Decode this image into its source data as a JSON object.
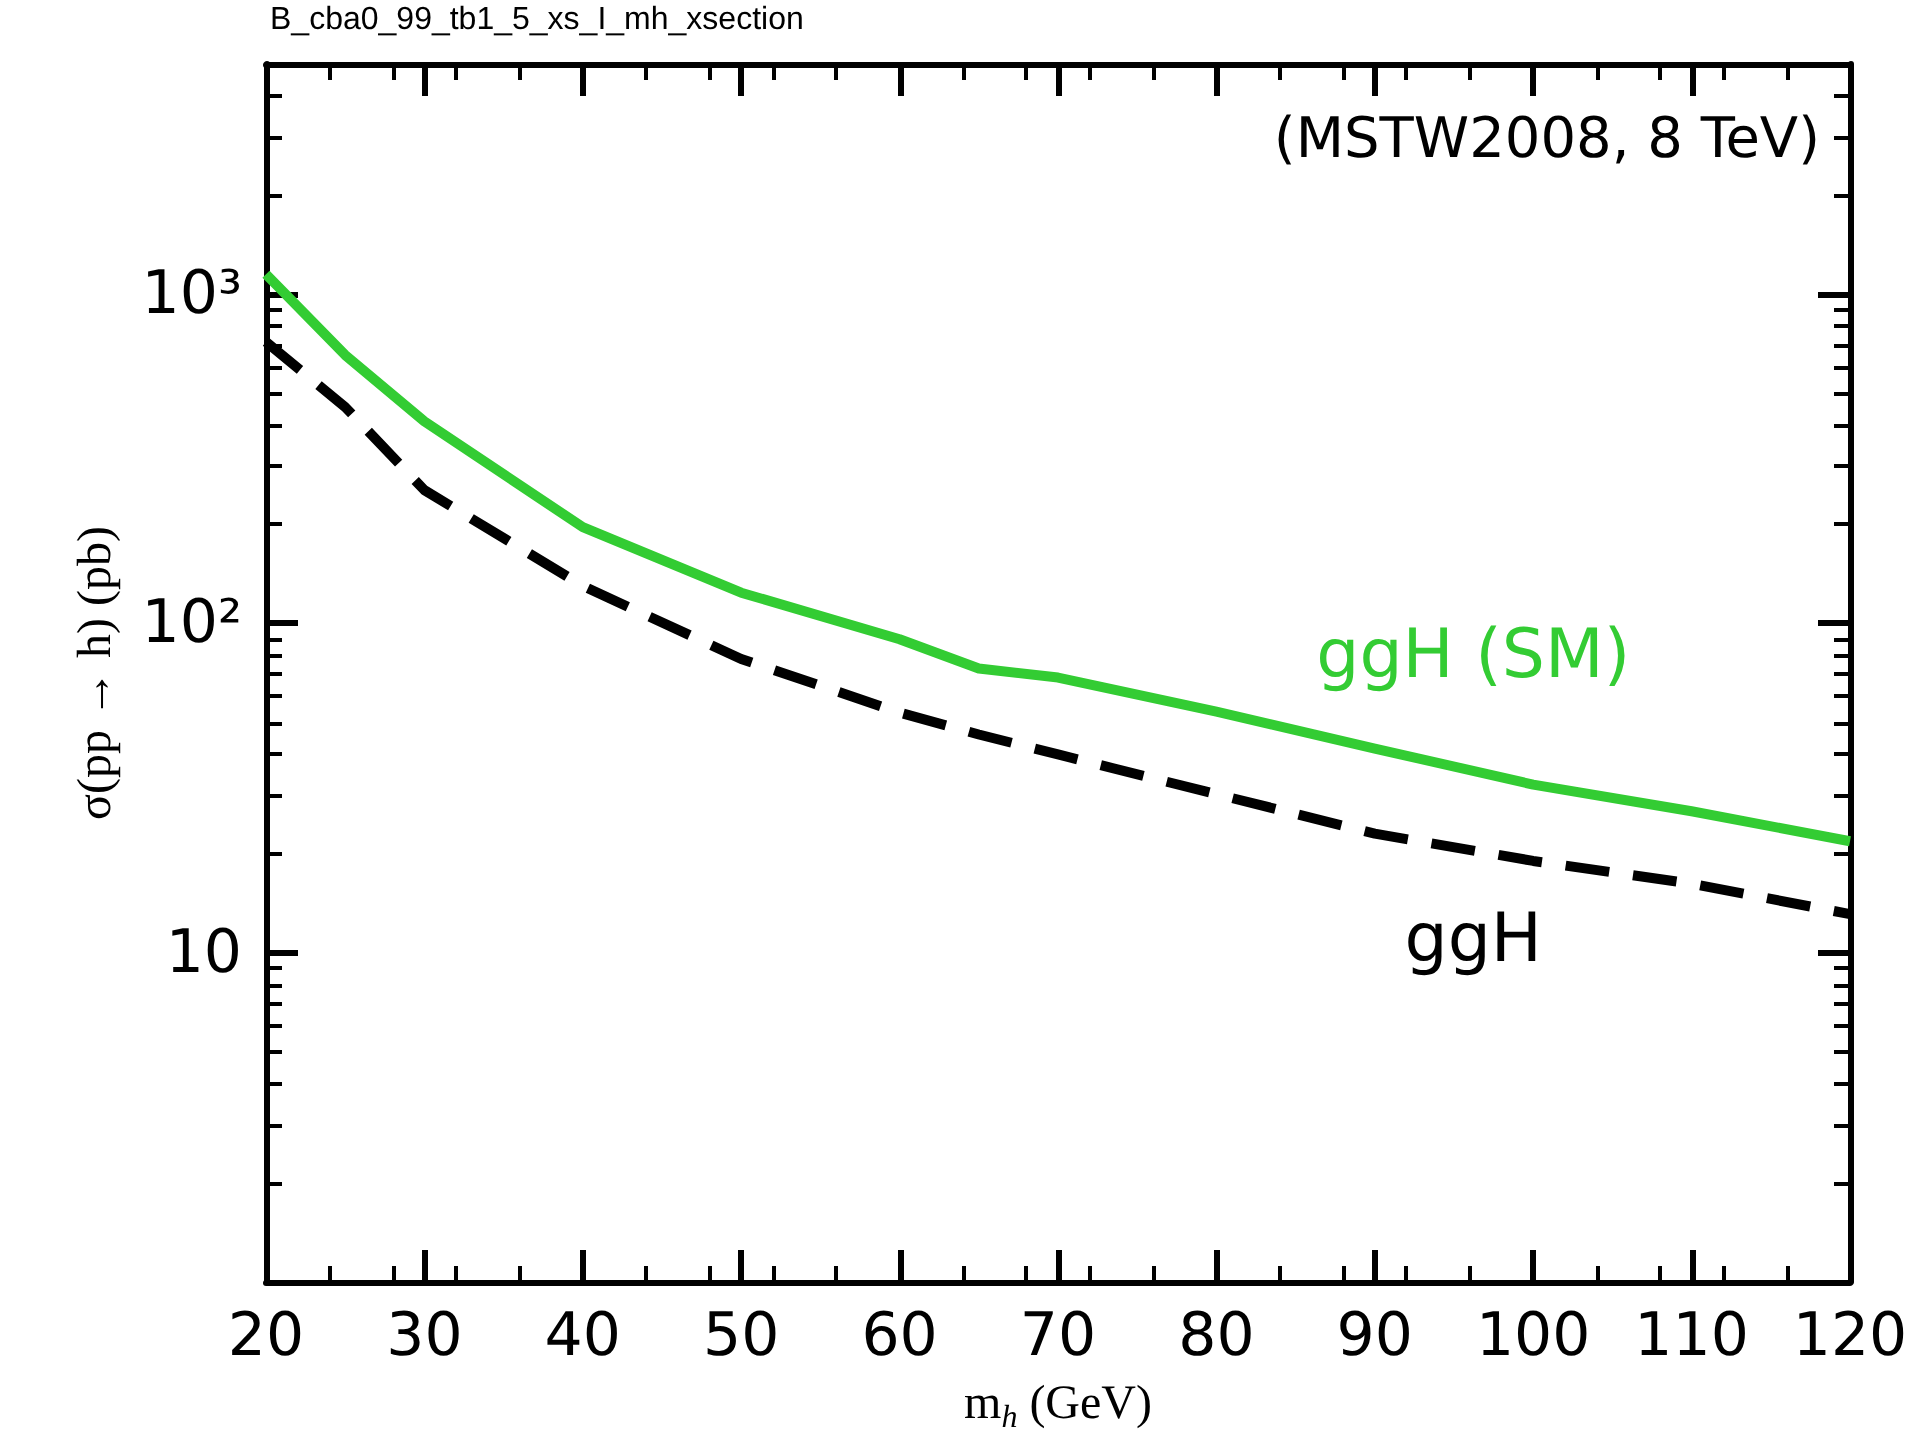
{
  "chart_data": {
    "type": "line",
    "title": "B_cba0_99_tb1_5_xs_I_mh_xsection",
    "xlabel": "m$_{h}$ (GeV)",
    "ylabel": "σ(pp → h) (pb)",
    "annotations": [
      "(MSTW2008, 8 TeV)"
    ],
    "x": [
      20,
      25,
      30,
      40,
      50,
      60,
      65,
      70,
      80,
      90,
      100,
      110,
      120
    ],
    "series": [
      {
        "name": "ggH (SM)",
        "color": "#33cc33",
        "line_style": "solid",
        "values": [
          1150,
          653,
          411,
          196,
          124,
          89.5,
          73,
          68.5,
          54,
          41.7,
          32.4,
          26.9,
          21.8
        ]
      },
      {
        "name": "ggH",
        "color": "#000000",
        "line_style": "dashed",
        "values": [
          716,
          454,
          254,
          130,
          78,
          53.6,
          46,
          40,
          30.3,
          23,
          19,
          16.2,
          13.1
        ]
      }
    ],
    "log": "y",
    "xlim": [
      20,
      120
    ],
    "xticks": [
      20,
      30,
      40,
      50,
      60,
      70,
      80,
      90,
      100,
      110,
      120
    ],
    "ylim": [
      1,
      5000
    ],
    "yticks": [
      {
        "value": 10,
        "label": "10"
      },
      {
        "value": 100,
        "label": "10²"
      },
      {
        "value": 1000,
        "label": "10³"
      }
    ],
    "grid": false,
    "legend": false,
    "marker": "none"
  }
}
